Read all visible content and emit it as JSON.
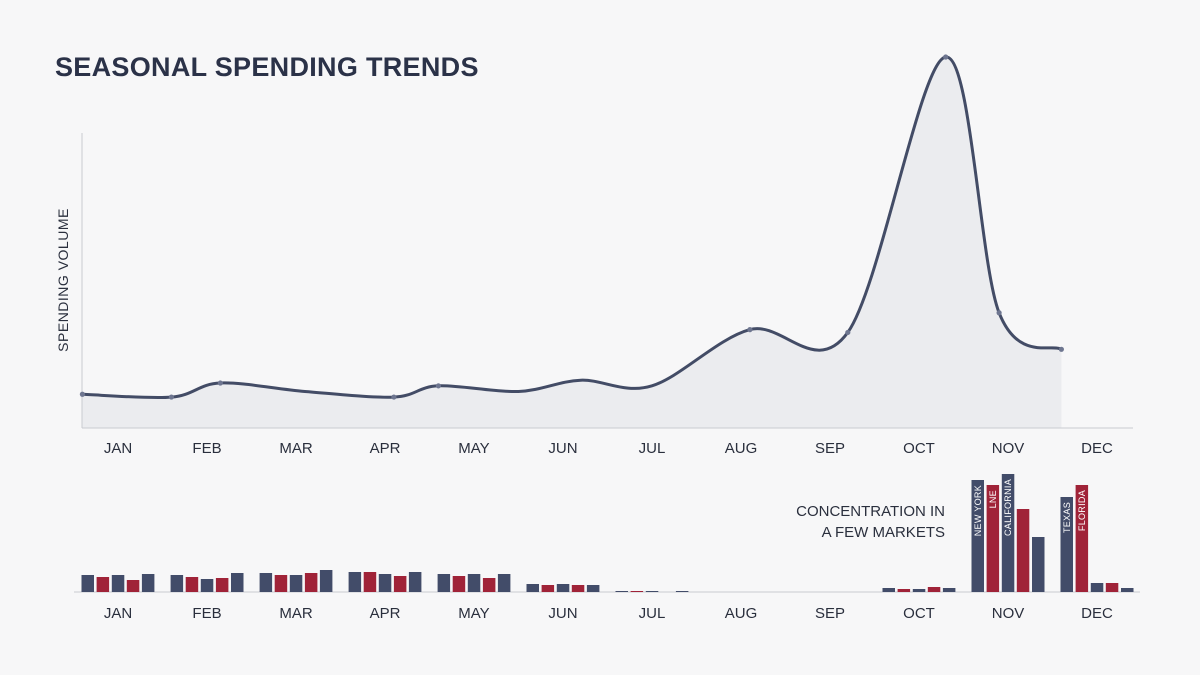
{
  "colors": {
    "background": "#f7f7f8",
    "title": "#2b3248",
    "line": "#434c66",
    "area": "#ebecef",
    "axis": "#c9cbd1",
    "navy": "#424c69",
    "red": "#a02338",
    "text": "#2a2f3d"
  },
  "chart_data": [
    {
      "type": "area",
      "title": "SEASONAL SPENDING TRENDS",
      "ylabel": "SPENDING VOLUME",
      "xlabel": "",
      "categories": [
        "JAN",
        "FEB",
        "MAR",
        "APR",
        "MAY",
        "JUN",
        "JUL",
        "AUG",
        "SEP",
        "OCT",
        "NOV",
        "DEC"
      ],
      "x": [
        0.6,
        1.6,
        2.15,
        3.1,
        4.1,
        4.6,
        5.5,
        6.2,
        7.0,
        8.1,
        9.2,
        10.3,
        10.9,
        11.6
      ],
      "y": [
        12,
        11,
        16,
        13,
        11,
        15,
        13,
        17,
        15,
        35,
        34,
        132,
        41,
        28
      ],
      "marker_x": [
        0.6,
        1.6,
        2.15,
        4.1,
        4.6,
        8.1,
        9.2,
        10.3,
        10.9,
        11.6
      ],
      "xlim": [
        0.6,
        11.6
      ],
      "ylim": [
        0,
        132
      ],
      "grid": false
    },
    {
      "type": "bar",
      "categories": [
        "JAN",
        "FEB",
        "MAR",
        "APR",
        "MAY",
        "JUN",
        "JUL",
        "AUG",
        "SEP",
        "OCT",
        "NOV",
        "DEC"
      ],
      "values": [
        [
          17,
          15,
          17,
          12,
          18
        ],
        [
          17,
          15,
          13,
          14,
          19
        ],
        [
          19,
          17,
          17,
          19,
          22
        ],
        [
          20,
          20,
          18,
          16,
          20
        ],
        [
          18,
          16,
          18,
          14,
          18
        ],
        [
          8,
          7,
          8,
          7,
          7
        ],
        [
          1,
          1,
          1,
          0,
          1
        ],
        [
          0,
          0,
          0,
          0,
          0
        ],
        [
          0,
          0,
          0,
          0,
          0
        ],
        [
          4,
          3,
          3,
          5,
          4
        ],
        [
          112,
          107,
          118,
          83,
          55
        ],
        [
          95,
          107,
          9,
          9,
          4
        ]
      ],
      "bar_labels": [
        {
          "month": "NOV",
          "bar": 0,
          "text": "NEW YORK"
        },
        {
          "month": "NOV",
          "bar": 1,
          "text": "LNE"
        },
        {
          "month": "NOV",
          "bar": 2,
          "text": "CALIFORNIA"
        },
        {
          "month": "DEC",
          "bar": 0,
          "text": "TEXAS"
        },
        {
          "month": "DEC",
          "bar": 1,
          "text": "FLORIDA"
        }
      ],
      "annotation": [
        "CONCENTRATION IN",
        "A FEW MARKETS"
      ],
      "ylim": [
        0,
        120
      ],
      "grid": false
    }
  ]
}
